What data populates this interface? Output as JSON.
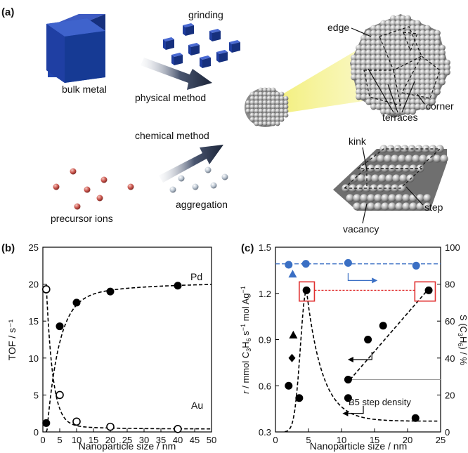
{
  "panel_a": {
    "panel_label": "(a)",
    "labels": {
      "bulk_metal": "bulk metal",
      "grinding": "grinding",
      "physical_method": "physical method",
      "chemical_method": "chemical method",
      "aggregation": "aggregation",
      "precursor_ions": "precursor ions",
      "edge": "edge",
      "corner": "corner",
      "terraces": "terraces",
      "kink": "kink",
      "step": "step",
      "vacancy": "vacancy"
    },
    "colors": {
      "cube": "#1f3d9e",
      "ion": "#c8524a",
      "arrow": "#1e2a44",
      "beam": "#f3ef7a",
      "sphere": "#b9b9b9"
    }
  },
  "chart_data": [
    {
      "type": "scatter",
      "panel_label": "(b)",
      "xlabel": "Nanoparticle size / nm",
      "ylabel": "TOF / s⁻¹",
      "xlim": [
        0,
        50
      ],
      "ylim": [
        0,
        25
      ],
      "xticks": [
        "0",
        "5",
        "10",
        "15",
        "20",
        "25",
        "30",
        "35",
        "40",
        "45",
        "50"
      ],
      "yticks": [
        "0",
        "5",
        "10",
        "15",
        "20",
        "25"
      ],
      "grid": false,
      "series": [
        {
          "name": "Pd",
          "marker": "filled-circle",
          "color": "#000000",
          "x": [
            1,
            5,
            10,
            20,
            40
          ],
          "y": [
            1.2,
            14.3,
            17.5,
            19.0,
            19.8
          ]
        },
        {
          "name": "Au",
          "marker": "open-circle",
          "color": "#000000",
          "x": [
            1,
            5,
            10,
            20,
            40
          ],
          "y": [
            19.3,
            5.0,
            1.4,
            0.7,
            0.4
          ]
        }
      ]
    },
    {
      "type": "scatter",
      "panel_label": "(c)",
      "xlabel": "Nanoparticle size / nm",
      "xlim": [
        0,
        25
      ],
      "ylim": [
        0.3,
        1.5
      ],
      "y2lim": [
        0,
        100
      ],
      "xticks": [
        "0",
        "5",
        "10",
        "15",
        "20",
        "25"
      ],
      "yticks": [
        "0.3",
        "0.6",
        "0.9",
        "1.2",
        "1.5"
      ],
      "y2ticks": [
        "0",
        "20",
        "40",
        "60",
        "80",
        "100"
      ],
      "grid": false,
      "annotation": "B5 step density",
      "series": [
        {
          "name": "r",
          "axis": "left",
          "marker": "filled-circle",
          "color": "#000000",
          "x": [
            2.0,
            3.6,
            4.7,
            11.0,
            21.2
          ],
          "y": [
            0.6,
            0.52,
            1.22,
            0.52,
            0.39
          ]
        },
        {
          "name": "r-triangle",
          "axis": "left",
          "marker": "filled-triangle",
          "color": "#000000",
          "x": [
            2.7
          ],
          "y": [
            0.93
          ]
        },
        {
          "name": "r-diamond",
          "axis": "left",
          "marker": "filled-diamond",
          "color": "#000000",
          "x": [
            2.5
          ],
          "y": [
            0.78
          ]
        },
        {
          "name": "B5 step density",
          "axis": "left",
          "marker": "filled-circle",
          "color": "#000000",
          "x": [
            11.0,
            14.0,
            16.3,
            23.2
          ],
          "y": [
            0.64,
            0.9,
            0.99,
            1.22
          ]
        },
        {
          "name": "S(C3H6)",
          "axis": "right",
          "marker": "filled-circle",
          "color": "#3a6fc4",
          "x": [
            2.0,
            4.6,
            11.0,
            21.3
          ],
          "y": [
            90.5,
            91.0,
            91.5,
            90.0
          ]
        },
        {
          "name": "S(C3H6)-triangle",
          "axis": "right",
          "marker": "filled-triangle",
          "color": "#3a6fc4",
          "x": [
            2.6
          ],
          "y": [
            85.5
          ]
        }
      ]
    }
  ]
}
